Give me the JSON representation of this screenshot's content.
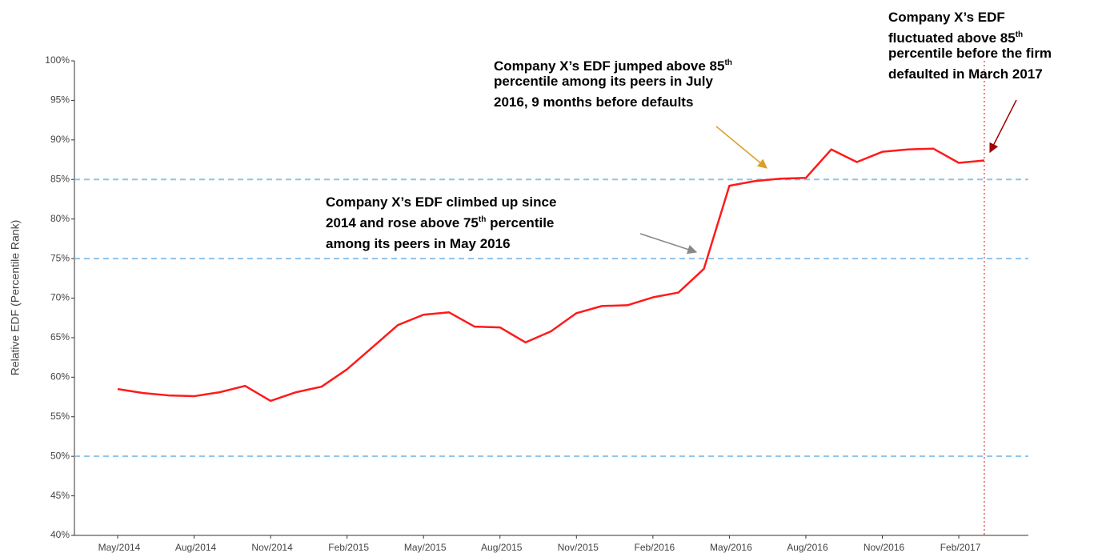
{
  "chart_data": {
    "type": "line",
    "y_label": "Relative EDF (Percentile Rank)",
    "categories": [
      "May/2014",
      null,
      null,
      "Aug/2014",
      null,
      null,
      "Nov/2014",
      null,
      null,
      "Feb/2015",
      null,
      null,
      "May/2015",
      null,
      null,
      "Aug/2015",
      null,
      null,
      "Nov/2015",
      null,
      null,
      "Feb/2016",
      null,
      null,
      "May/2016",
      null,
      null,
      "Aug/2016",
      null,
      null,
      "Nov/2016",
      null,
      null,
      "Feb/2017",
      null
    ],
    "series": [
      {
        "name": "Relative EDF",
        "color": "#ff1a1a",
        "values": [
          58.5,
          58.0,
          57.7,
          57.6,
          58.1,
          58.9,
          57.0,
          58.1,
          58.8,
          61.0,
          63.8,
          66.6,
          67.9,
          68.2,
          66.4,
          66.3,
          64.4,
          65.8,
          68.1,
          69.0,
          69.1,
          70.1,
          70.7,
          73.7,
          84.2,
          84.8,
          85.1,
          85.2,
          88.8,
          87.2,
          88.5,
          88.8,
          88.9,
          87.1,
          87.4
        ]
      }
    ],
    "ylim": [
      40,
      100
    ],
    "yticks": [
      {
        "value": 40,
        "label": "40%"
      },
      {
        "value": 45,
        "label": "45%"
      },
      {
        "value": 50,
        "label": "50%"
      },
      {
        "value": 55,
        "label": "55%"
      },
      {
        "value": 60,
        "label": "60%"
      },
      {
        "value": 65,
        "label": "65%"
      },
      {
        "value": 70,
        "label": "70%"
      },
      {
        "value": 75,
        "label": "75%"
      },
      {
        "value": 80,
        "label": "80%"
      },
      {
        "value": 85,
        "label": "85%"
      },
      {
        "value": 90,
        "label": "90%"
      },
      {
        "value": 95,
        "label": "95%"
      },
      {
        "value": 100,
        "label": "100%"
      }
    ],
    "hlines": [
      50,
      75,
      85
    ],
    "hline_color": "#8fc3ea",
    "vline_color": "#ff4d4d",
    "annotations": [
      {
        "lines": [
          [
            "Company X’s EDF climbed up since"
          ],
          [
            "2014 and rose above 75",
            "th",
            " percentile"
          ],
          [
            "among its peers in May 2016"
          ]
        ]
      },
      {
        "lines": [
          [
            "Company X’s EDF jumped above 85",
            "th"
          ],
          [
            "percentile among its peers in July"
          ],
          [
            "2016, 9 months before defaults"
          ]
        ]
      },
      {
        "lines": [
          [
            "Company X’s EDF"
          ],
          [
            "fluctuated above 85",
            "th"
          ],
          [
            "percentile before the firm"
          ],
          [
            "defaulted in March 2017"
          ]
        ]
      }
    ]
  }
}
